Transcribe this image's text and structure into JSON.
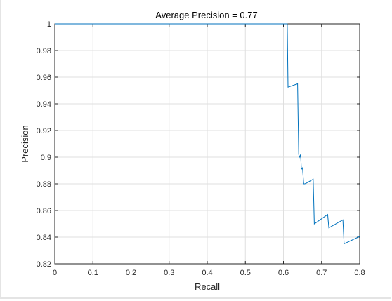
{
  "chart_data": {
    "type": "line",
    "title": "Average Precision = 0.77",
    "xlabel": "Recall",
    "ylabel": "Precision",
    "xlim": [
      0,
      0.8
    ],
    "ylim": [
      0.82,
      1
    ],
    "xticks": [
      0,
      0.1,
      0.2,
      0.3,
      0.4,
      0.5,
      0.6,
      0.7,
      0.8
    ],
    "xtick_labels": [
      "0",
      "0.1",
      "0.2",
      "0.3",
      "0.4",
      "0.5",
      "0.6",
      "0.7",
      "0.8"
    ],
    "yticks": [
      0.82,
      0.84,
      0.86,
      0.88,
      0.9,
      0.92,
      0.94,
      0.96,
      0.98,
      1
    ],
    "ytick_labels": [
      "0.82",
      "0.84",
      "0.86",
      "0.88",
      "0.9",
      "0.92",
      "0.94",
      "0.96",
      "0.98",
      "1"
    ],
    "grid": true,
    "line_color": "#0072bd",
    "series": [
      {
        "x": [
          0,
          0.61,
          0.612,
          0.612,
          0.637,
          0.64,
          0.643,
          0.645,
          0.647,
          0.65,
          0.653,
          0.656,
          0.66,
          0.678,
          0.681,
          0.716,
          0.719,
          0.756,
          0.759,
          0.8
        ],
        "y": [
          1,
          1,
          0.9525,
          0.9525,
          0.955,
          0.902,
          0.9,
          0.902,
          0.891,
          0.892,
          0.88,
          0.88,
          0.8805,
          0.8835,
          0.85,
          0.857,
          0.847,
          0.853,
          0.835,
          0.8405
        ]
      }
    ]
  }
}
